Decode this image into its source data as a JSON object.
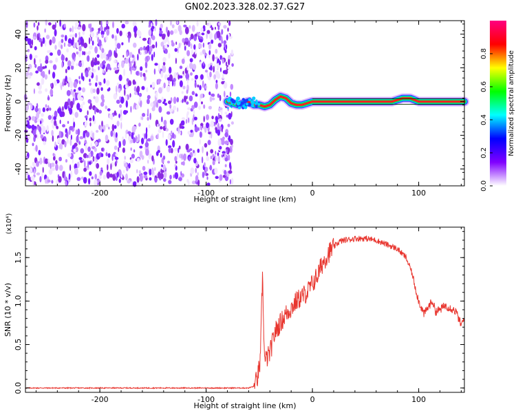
{
  "figure": {
    "title": "GN02.2023.328.02.37.G27"
  },
  "chart_data": [
    {
      "type": "heatmap",
      "panel": "spectrogram",
      "xlabel": "Height of straight line (km)",
      "ylabel": "Frequency (Hz)",
      "xlim": [
        -270,
        143
      ],
      "ylim": [
        -50,
        48
      ],
      "xticks": [
        -200,
        -100,
        0,
        100
      ],
      "yticks": [
        -40,
        -20,
        0,
        20,
        40
      ],
      "xtick_labels": [
        "-200",
        "-100",
        "0",
        "100"
      ],
      "ytick_labels": [
        "-40",
        "-20",
        "0",
        "20",
        "40"
      ],
      "noise_region": [
        -270,
        -75
      ],
      "signal_track": [
        {
          "x": -80,
          "y": 0
        },
        {
          "x": -75,
          "y": -1
        },
        {
          "x": -70,
          "y": -2
        },
        {
          "x": -65,
          "y": -1
        },
        {
          "x": -60,
          "y": 0
        },
        {
          "x": -55,
          "y": -2
        },
        {
          "x": -50,
          "y": -2
        },
        {
          "x": -45,
          "y": -3
        },
        {
          "x": -40,
          "y": -2
        },
        {
          "x": -35,
          "y": 1
        },
        {
          "x": -30,
          "y": 3
        },
        {
          "x": -25,
          "y": 2
        },
        {
          "x": -20,
          "y": -1
        },
        {
          "x": -15,
          "y": -2
        },
        {
          "x": -10,
          "y": -2
        },
        {
          "x": -5,
          "y": -1
        },
        {
          "x": 0,
          "y": 0
        },
        {
          "x": 20,
          "y": 0
        },
        {
          "x": 50,
          "y": 0
        },
        {
          "x": 75,
          "y": 0
        },
        {
          "x": 85,
          "y": 2
        },
        {
          "x": 92,
          "y": 2
        },
        {
          "x": 100,
          "y": 0
        },
        {
          "x": 143,
          "y": 0
        }
      ],
      "colorbar": {
        "label": "Normalized spectral amplitude",
        "ticks": [
          0.0,
          0.2,
          0.4,
          0.6,
          0.8
        ],
        "tick_labels": [
          "0.0",
          "0.2",
          "0.4",
          "0.6",
          "0.8"
        ],
        "range": [
          0,
          1
        ],
        "colors": [
          "#ffffff",
          "#8000ff",
          "#0000ff",
          "#00ffff",
          "#00ff00",
          "#ffff00",
          "#ff0000",
          "#ff0080"
        ]
      }
    },
    {
      "type": "line",
      "panel": "snr",
      "xlabel": "Height of straight line (km)",
      "ylabel": "SNR (10 * v/v)",
      "y_multiplier": "(x10⁴)",
      "xlim": [
        -270,
        143
      ],
      "ylim": [
        -0.05,
        1.85
      ],
      "xticks": [
        -200,
        -100,
        0,
        100
      ],
      "yticks": [
        0.0,
        0.5,
        1.0,
        1.5
      ],
      "xtick_labels": [
        "-200",
        "-100",
        "0",
        "100"
      ],
      "ytick_labels": [
        "0.0",
        "0.5",
        "1.0",
        "1.5"
      ],
      "color": "#e8352e",
      "series": [
        {
          "values": [
            {
              "x": -270,
              "y": 0.0
            },
            {
              "x": -100,
              "y": 0.0
            },
            {
              "x": -60,
              "y": 0.0
            },
            {
              "x": -55,
              "y": 0.02
            },
            {
              "x": -52,
              "y": 0.1
            },
            {
              "x": -49,
              "y": 0.3
            },
            {
              "x": -47,
              "y": 1.3
            },
            {
              "x": -45,
              "y": 0.3
            },
            {
              "x": -40,
              "y": 0.4
            },
            {
              "x": -35,
              "y": 0.65
            },
            {
              "x": -30,
              "y": 0.75
            },
            {
              "x": -25,
              "y": 0.85
            },
            {
              "x": -20,
              "y": 0.92
            },
            {
              "x": -15,
              "y": 1.0
            },
            {
              "x": -10,
              "y": 1.05
            },
            {
              "x": -5,
              "y": 1.1
            },
            {
              "x": 0,
              "y": 1.2
            },
            {
              "x": 5,
              "y": 1.3
            },
            {
              "x": 10,
              "y": 1.45
            },
            {
              "x": 15,
              "y": 1.55
            },
            {
              "x": 20,
              "y": 1.62
            },
            {
              "x": 25,
              "y": 1.68
            },
            {
              "x": 30,
              "y": 1.7
            },
            {
              "x": 40,
              "y": 1.72
            },
            {
              "x": 50,
              "y": 1.72
            },
            {
              "x": 60,
              "y": 1.7
            },
            {
              "x": 70,
              "y": 1.65
            },
            {
              "x": 80,
              "y": 1.6
            },
            {
              "x": 88,
              "y": 1.5
            },
            {
              "x": 93,
              "y": 1.35
            },
            {
              "x": 97,
              "y": 1.15
            },
            {
              "x": 100,
              "y": 1.0
            },
            {
              "x": 105,
              "y": 0.85
            },
            {
              "x": 110,
              "y": 0.95
            },
            {
              "x": 113,
              "y": 1.0
            },
            {
              "x": 116,
              "y": 0.88
            },
            {
              "x": 120,
              "y": 0.9
            },
            {
              "x": 125,
              "y": 0.95
            },
            {
              "x": 130,
              "y": 0.92
            },
            {
              "x": 135,
              "y": 0.88
            },
            {
              "x": 140,
              "y": 0.72
            },
            {
              "x": 143,
              "y": 0.8
            }
          ]
        }
      ]
    }
  ]
}
